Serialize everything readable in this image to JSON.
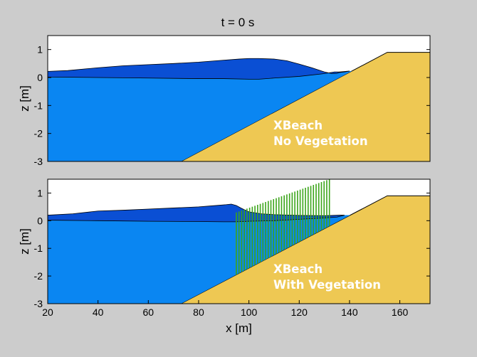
{
  "chart_data": [
    {
      "type": "area",
      "title": "t = 0 s",
      "xlabel": "",
      "ylabel": "z [m]",
      "xlim": [
        20,
        172
      ],
      "ylim": [
        -3,
        1.5
      ],
      "yticks": [
        1,
        0,
        -1,
        -2,
        -3
      ],
      "xticks": [],
      "annotation": [
        "XBeach",
        "No Vegetation"
      ],
      "colors": {
        "surface": "#0a4fd4",
        "water": "#0a86f2",
        "sand": "#eec853",
        "background": "#ffffff"
      },
      "bed": {
        "x": [
          20,
          73,
          155,
          172
        ],
        "z": [
          -3,
          -3,
          0.9,
          0.9
        ]
      },
      "water_level": {
        "x": [
          20,
          40,
          60,
          80,
          90,
          100,
          104,
          110,
          120,
          130,
          134,
          136
        ],
        "z": [
          0.02,
          0,
          -0.02,
          -0.04,
          -0.04,
          -0.06,
          -0.06,
          -0.02,
          0.04,
          0.14,
          0.2,
          0.2
        ]
      },
      "water_surface": {
        "x": [
          20,
          28,
          40,
          50,
          60,
          70,
          80,
          90,
          96,
          100,
          104,
          110,
          115,
          120,
          125,
          130,
          133,
          135,
          136,
          138,
          140
        ],
        "z": [
          0.22,
          0.25,
          0.35,
          0.42,
          0.46,
          0.5,
          0.55,
          0.62,
          0.66,
          0.68,
          0.68,
          0.66,
          0.6,
          0.48,
          0.35,
          0.2,
          0.14,
          0.15,
          0.18,
          0.2,
          0.23
        ]
      },
      "vegetation": null
    },
    {
      "type": "area",
      "title": "",
      "xlabel": "x [m]",
      "ylabel": "z [m]",
      "xlim": [
        20,
        172
      ],
      "ylim": [
        -3,
        1.5
      ],
      "yticks": [
        1,
        0,
        -1,
        -2,
        -3
      ],
      "xticks": [
        20,
        40,
        60,
        80,
        100,
        120,
        140,
        160
      ],
      "annotation": [
        "XBeach",
        "With Vegetation"
      ],
      "colors": {
        "surface": "#0a4fd4",
        "water": "#0a86f2",
        "sand": "#eec853",
        "background": "#ffffff",
        "vegetation": "#3ca51a"
      },
      "bed": {
        "x": [
          20,
          73,
          155,
          172
        ],
        "z": [
          -3,
          -3,
          0.9,
          0.9
        ]
      },
      "water_level": {
        "x": [
          20,
          40,
          60,
          80,
          90,
          95,
          100,
          110,
          120,
          130,
          135
        ],
        "z": [
          0.02,
          0,
          -0.02,
          -0.03,
          -0.04,
          -0.04,
          -0.02,
          0,
          0.05,
          0.1,
          0.13
        ]
      },
      "water_surface": {
        "x": [
          20,
          30,
          40,
          50,
          60,
          70,
          80,
          87,
          91,
          93,
          95,
          97,
          100,
          105,
          110,
          120,
          130,
          136,
          138
        ],
        "z": [
          0.2,
          0.25,
          0.35,
          0.38,
          0.42,
          0.46,
          0.5,
          0.55,
          0.58,
          0.6,
          0.55,
          0.45,
          0.32,
          0.25,
          0.22,
          0.19,
          0.18,
          0.2,
          0.2
        ]
      },
      "vegetation": {
        "x_start": 95,
        "x_end": 132,
        "stems": 36,
        "top_start": 0.3,
        "top_end": 1.5
      }
    }
  ]
}
